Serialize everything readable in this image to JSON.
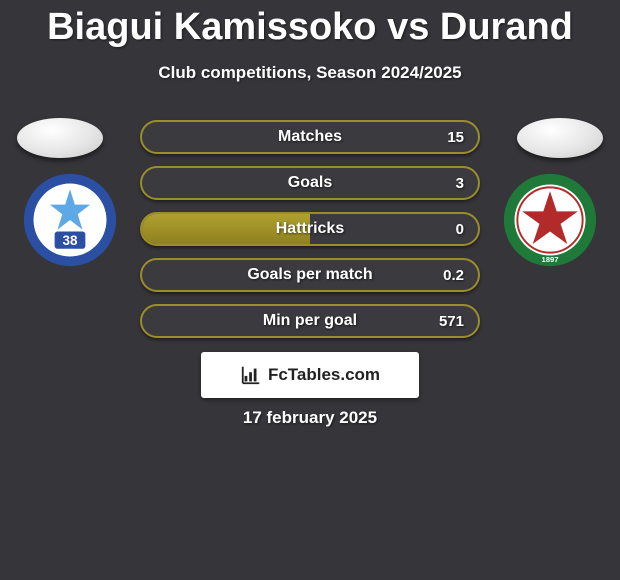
{
  "title": "Biagui Kamissoko vs Durand",
  "subtitle": "Club competitions, Season 2024/2025",
  "date": "17 february 2025",
  "brand": "FcTables.com",
  "colors": {
    "background": "#36363a",
    "bar_border": "#9b8e2a",
    "bar_fill_top": "#b0a02f",
    "bar_fill_bottom": "#8e801f",
    "text": "#ffffff",
    "brand_bg": "#ffffff",
    "brand_text": "#222222"
  },
  "left_badge": {
    "name": "Grenoble Foot 38",
    "ring_color": "#2a4fa3",
    "inner_bg": "#ffffff",
    "accent": "#5fa8e6",
    "number_label": "38"
  },
  "right_badge": {
    "name": "Red Star FC",
    "ring_color": "#1f7a3a",
    "inner_bg": "#ffffff",
    "star_color": "#b22a2a",
    "year_label": "1897"
  },
  "stats": [
    {
      "label": "Matches",
      "left_pct": 0,
      "right_val": "15"
    },
    {
      "label": "Goals",
      "left_pct": 0,
      "right_val": "3"
    },
    {
      "label": "Hattricks",
      "left_pct": 50,
      "right_val": "0"
    },
    {
      "label": "Goals per match",
      "left_pct": 0,
      "right_val": "0.2"
    },
    {
      "label": "Min per goal",
      "left_pct": 0,
      "right_val": "571"
    }
  ]
}
